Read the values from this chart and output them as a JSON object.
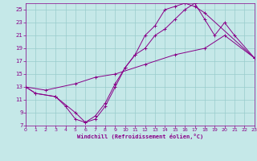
{
  "xlabel": "Windchill (Refroidissement éolien,°C)",
  "bg_color": "#c5e8e8",
  "line_color": "#880088",
  "grid_color": "#99cccc",
  "xlim": [
    0,
    23
  ],
  "ylim": [
    7,
    26
  ],
  "xticks": [
    0,
    1,
    2,
    3,
    4,
    5,
    6,
    7,
    8,
    9,
    10,
    11,
    12,
    13,
    14,
    15,
    16,
    17,
    18,
    19,
    20,
    21,
    22,
    23
  ],
  "yticks": [
    7,
    9,
    11,
    13,
    15,
    17,
    19,
    21,
    23,
    25
  ],
  "line1_x": [
    0,
    1,
    3,
    4,
    5,
    6,
    7,
    8,
    9,
    10,
    11,
    12,
    13,
    14,
    15,
    16,
    17,
    18,
    23
  ],
  "line1_y": [
    13,
    12,
    11.5,
    10,
    8,
    7.5,
    8,
    10,
    13,
    16,
    18,
    21,
    22.5,
    25,
    25.5,
    26,
    25.5,
    24.5,
    17.5
  ],
  "line2_x": [
    0,
    1,
    3,
    5,
    6,
    7,
    8,
    9,
    10,
    11,
    12,
    13,
    14,
    15,
    16,
    17,
    18,
    19,
    20,
    21,
    23
  ],
  "line2_y": [
    13,
    12,
    11.5,
    9,
    7.5,
    8.5,
    10.5,
    13.5,
    16,
    18,
    19,
    21,
    22,
    23.5,
    25,
    26,
    23.5,
    21,
    23,
    21,
    17.5
  ],
  "line3_x": [
    0,
    2,
    5,
    7,
    9,
    12,
    15,
    18,
    20,
    23
  ],
  "line3_y": [
    13,
    12.5,
    13.5,
    14.5,
    15,
    16.5,
    18,
    19,
    21,
    17.5
  ]
}
